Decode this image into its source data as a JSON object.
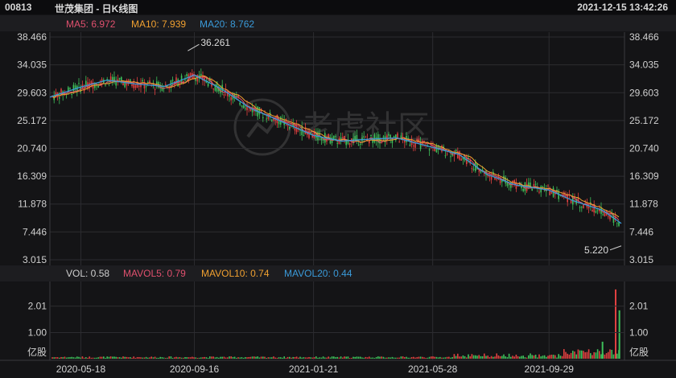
{
  "header": {
    "code": "00813",
    "name": "世茂集团 - 日K线图",
    "datetime": "2021-12-15 13:42:26"
  },
  "legend": {
    "ma5": {
      "label": "MA5: 6.972",
      "color": "#e0506e"
    },
    "ma10": {
      "label": "MA10: 7.939",
      "color": "#f0a030"
    },
    "ma20": {
      "label": "MA20: 8.762",
      "color": "#3a9ad9"
    }
  },
  "volume_legend": {
    "vol": {
      "label": "VOL: 0.58",
      "color": "#cfcfcf"
    },
    "mavol5": {
      "label": "MAVOL5: 0.79",
      "color": "#e0506e"
    },
    "mavol10": {
      "label": "MAVOL10: 0.74",
      "color": "#f0a030"
    },
    "mavol20": {
      "label": "MAVOL20: 0.44",
      "color": "#3a9ad9"
    }
  },
  "colors": {
    "up": "#e04040",
    "down": "#3ec05a",
    "grid": "#2c2c30",
    "axis_text": "#d0d0d0"
  },
  "chart_data": [
    {
      "type": "line",
      "title": "",
      "price_ticks": [
        "38.466",
        "34.035",
        "29.603",
        "25.172",
        "20.740",
        "16.309",
        "11.878",
        "7.446",
        "3.015"
      ],
      "ylim": [
        3.015,
        38.466
      ],
      "x_dates": [
        "2020-05-18",
        "2020-09-16",
        "2021-01-21",
        "2021-05-28",
        "2021-09-29"
      ],
      "annotations": [
        {
          "label": "36.261",
          "value": 36.261,
          "date": "2020-09-09"
        },
        {
          "label": "5.220",
          "value": 5.22,
          "date": "2021-12-15"
        }
      ],
      "series": [
        {
          "name": "MA20",
          "x": [
            "2020-04-15",
            "2020-05-18",
            "2020-06-15",
            "2020-07-15",
            "2020-08-15",
            "2020-09-16",
            "2020-10-15",
            "2020-11-15",
            "2020-12-15",
            "2021-01-21",
            "2021-02-20",
            "2021-03-20",
            "2021-04-20",
            "2021-05-28",
            "2021-06-25",
            "2021-07-25",
            "2021-08-25",
            "2021-09-29",
            "2021-10-25",
            "2021-11-25",
            "2021-12-15"
          ],
          "values": [
            28.9,
            30.5,
            31.6,
            31.0,
            30.6,
            32.4,
            30.2,
            27.1,
            25.2,
            22.8,
            21.9,
            22.2,
            22.4,
            20.9,
            19.8,
            16.6,
            14.9,
            14.1,
            12.4,
            10.9,
            8.8
          ]
        }
      ]
    },
    {
      "type": "bar",
      "title": "",
      "unit": "亿股",
      "ticks": [
        "2.01",
        "1.00",
        "亿股"
      ],
      "ylim": [
        0,
        2.8
      ],
      "spikes": [
        {
          "date": "2021-12-09",
          "value": 2.65
        },
        {
          "date": "2021-12-13",
          "value": 1.85
        },
        {
          "date": "2021-11-25",
          "value": 0.65
        }
      ]
    }
  ]
}
